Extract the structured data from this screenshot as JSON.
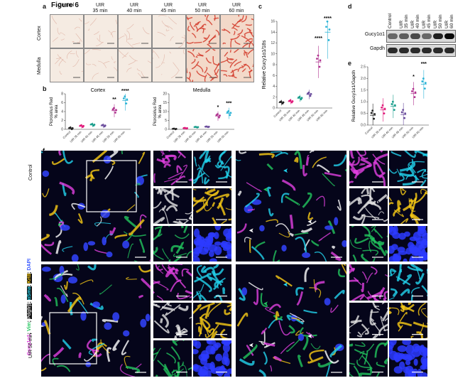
{
  "figure_title": "Figure 6",
  "panel_letters": {
    "a": "a",
    "b": "b",
    "c": "c",
    "d": "d",
    "e": "e",
    "f": "f"
  },
  "panel_a": {
    "columns": [
      "Control",
      "UIR\n35 min",
      "UIR\n40 min",
      "UIR\n45 min",
      "UIR\n50 min",
      "UIR\n60 min"
    ],
    "rows": [
      "Cortex",
      "Medulla"
    ]
  },
  "panel_b": {
    "titles": [
      "Cortex",
      "Medulla"
    ],
    "ylabel": "Picrosirius Red\n% area",
    "yticks": [
      "0",
      "2",
      "4",
      "6",
      "8"
    ],
    "categories": [
      "Control",
      "UIR 35 min",
      "UIR 40 min",
      "UIR 45 min",
      "UIR 50 min",
      "UIR 60 min"
    ],
    "sig_cortex": [
      "**",
      "****"
    ],
    "sig_medulla": [
      "*",
      "***"
    ]
  },
  "panel_c": {
    "ylabel": "Relative Gucy1α1/18s",
    "yticks": [
      "0",
      "2",
      "4",
      "6",
      "8",
      "10",
      "12",
      "14",
      "16"
    ],
    "categories": [
      "Control",
      "UIR 35 min",
      "UIR 40 min",
      "UIR 45 min",
      "UIR 50 min",
      "UIR 60 min"
    ],
    "sig": [
      "****",
      "****"
    ]
  },
  "panel_d": {
    "columns": [
      "Control",
      "UIR\n35 min",
      "UIR\n40 min",
      "UIR\n45 min",
      "UIR\n50 min",
      "UIR\n60 min"
    ],
    "bands": [
      "Gucy1α1",
      "Gapdh"
    ]
  },
  "panel_e": {
    "ylabel": "Relative Gucy1α1/Gapdh",
    "yticks": [
      "0.0",
      "0.5",
      "1.0",
      "1.5",
      "2.0",
      "2.5"
    ],
    "categories": [
      "Control",
      "UIR 35 min",
      "UIR 40 min",
      "UIR 45 min",
      "UIR 50 min",
      "UIR 60 min"
    ],
    "sig": [
      "*",
      "***"
    ]
  },
  "panel_f": {
    "row_labels": [
      "Control",
      "UIR 50 min"
    ],
    "stain_parts": [
      "Gucy1α1",
      "; ",
      "Vim",
      "; ",
      "Pdgfrβ",
      "; ",
      "αSma",
      "; ",
      "Krt8",
      "; ",
      "DAPI"
    ]
  },
  "chart_data": [
    {
      "type": "scatter",
      "title": "Cortex",
      "ylabel": "Picrosirius Red % area",
      "categories": [
        "Control",
        "UIR 35 min",
        "UIR 40 min",
        "UIR 45 min",
        "UIR 50 min",
        "UIR 60 min"
      ],
      "ylim": [
        0,
        8
      ],
      "series": [
        {
          "values": [
            0.2,
            0.7,
            1.0,
            0.8,
            4.2,
            6.5
          ]
        }
      ],
      "annotations": [
        "**",
        "****"
      ]
    },
    {
      "type": "scatter",
      "title": "Medulla",
      "ylabel": "Picrosirius Red % area",
      "categories": [
        "Control",
        "UIR 35 min",
        "UIR 40 min",
        "UIR 45 min",
        "UIR 50 min",
        "UIR 60 min"
      ],
      "ylim": [
        0,
        20
      ],
      "series": [
        {
          "values": [
            0.2,
            0.6,
            1.2,
            1.4,
            7.5,
            9.0
          ]
        }
      ],
      "annotations": [
        "*",
        "***"
      ]
    },
    {
      "type": "scatter",
      "ylabel": "Relative Gucy1α1/18s",
      "categories": [
        "Control",
        "UIR 35 min",
        "UIR 40 min",
        "UIR 45 min",
        "UIR 50 min",
        "UIR 60 min"
      ],
      "ylim": [
        0,
        16
      ],
      "series": [
        {
          "values": [
            1.0,
            1.2,
            1.8,
            2.5,
            8.5,
            14.0
          ]
        }
      ],
      "annotations": [
        "****",
        "****"
      ]
    },
    {
      "type": "scatter",
      "ylabel": "Relative Gucy1α1/Gapdh",
      "categories": [
        "Control",
        "UIR 35 min",
        "UIR 40 min",
        "UIR 45 min",
        "UIR 50 min",
        "UIR 60 min"
      ],
      "ylim": [
        0,
        2.5
      ],
      "series": [
        {
          "values": [
            0.42,
            0.65,
            0.8,
            0.45,
            1.35,
            1.75
          ]
        }
      ],
      "annotations": [
        "*",
        "***"
      ]
    }
  ],
  "colors": {
    "control": "#222222",
    "uir35": "#e0197a",
    "uir40": "#1a9e8c",
    "uir45": "#6a4c9c",
    "uir50": "#b0338f",
    "uir60": "#2bb3d6",
    "picro": "#d23a2a"
  }
}
